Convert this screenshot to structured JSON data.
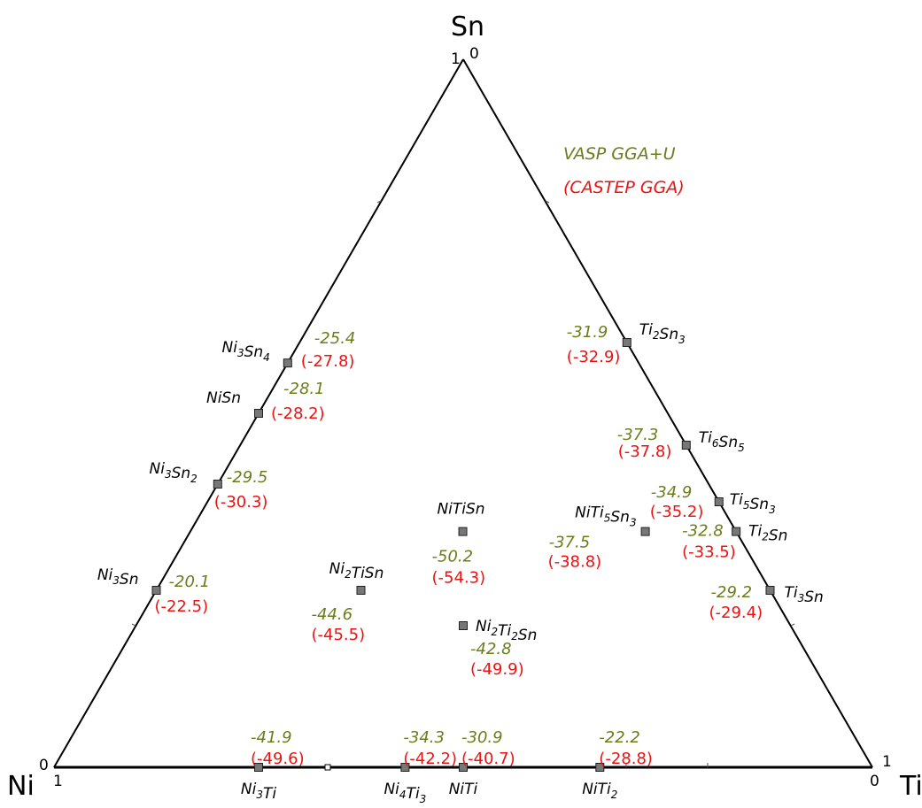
{
  "corners": {
    "top": "Sn",
    "left": "Ni",
    "right": "Ti"
  },
  "ticks": {
    "top_a": "1",
    "top_b": "0",
    "left_a": "0",
    "left_b": "1",
    "right_a": "1",
    "right_b": "0"
  },
  "colors": {
    "vasp": "#6b7d1b",
    "castep": "#ee1111",
    "marker": "#777777",
    "axis": "#000000"
  },
  "legend": {
    "vasp": "VASP GGA+U",
    "castep": "(CASTEP GGA)"
  },
  "phases": [
    {
      "id": "ni3sn4",
      "name": [
        "Ni",
        "3",
        "Sn",
        "4"
      ],
      "ti": 0,
      "sn": 0.571,
      "vasp": "-25.4",
      "castep": "(-27.8)"
    },
    {
      "id": "nisn",
      "name": [
        "NiSn"
      ],
      "ti": 0,
      "sn": 0.5,
      "vasp": "-28.1",
      "castep": "(-28.2)"
    },
    {
      "id": "ni3sn2",
      "name": [
        "Ni",
        "3",
        "Sn",
        "2"
      ],
      "ti": 0,
      "sn": 0.4,
      "vasp": "-29.5",
      "castep": "(-30.3)"
    },
    {
      "id": "ni3sn",
      "name": [
        "Ni",
        "3",
        "Sn"
      ],
      "ti": 0,
      "sn": 0.25,
      "vasp": "-20.1",
      "castep": "(-22.5)"
    },
    {
      "id": "ti2sn3",
      "name": [
        "Ti",
        "2",
        "Sn",
        "3"
      ],
      "ti": 0.4,
      "sn": 0.6,
      "vasp": "-31.9",
      "castep": "(-32.9)"
    },
    {
      "id": "ti6sn5",
      "name": [
        "Ti",
        "6",
        "Sn",
        "5"
      ],
      "ti": 0.545,
      "sn": 0.455,
      "vasp": "-37.3",
      "castep": "(-37.8)"
    },
    {
      "id": "ti5sn3",
      "name": [
        "Ti",
        "5",
        "Sn",
        "3"
      ],
      "ti": 0.625,
      "sn": 0.375,
      "vasp": "-34.9",
      "castep": "(-35.2)"
    },
    {
      "id": "ti2sn",
      "name": [
        "Ti",
        "2",
        "Sn"
      ],
      "ti": 0.667,
      "sn": 0.333,
      "vasp": "-32.8",
      "castep": "(-33.5)"
    },
    {
      "id": "ti3sn",
      "name": [
        "Ti",
        "3",
        "Sn"
      ],
      "ti": 0.75,
      "sn": 0.25,
      "vasp": "-29.2",
      "castep": "(-29.4)"
    },
    {
      "id": "nitisn",
      "name": [
        "NiTiSn"
      ],
      "ti": 0.333,
      "sn": 0.333,
      "vasp": "-50.2",
      "castep": "(-54.3)"
    },
    {
      "id": "ni2tisn",
      "name": [
        "Ni",
        "2",
        "TiSn"
      ],
      "ti": 0.25,
      "sn": 0.25,
      "vasp": "-44.6",
      "castep": "(-45.5)"
    },
    {
      "id": "ni2ti2sn",
      "name": [
        "Ni",
        "2",
        "Ti",
        "2",
        "Sn"
      ],
      "ti": 0.4,
      "sn": 0.2,
      "vasp": "-42.8",
      "castep": "(-49.9)"
    },
    {
      "id": "niti5sn3",
      "name": [
        "NiTi",
        "5",
        "Sn",
        "3"
      ],
      "ti": 0.556,
      "sn": 0.333,
      "vasp": "-37.5",
      "castep": "(-38.8)"
    },
    {
      "id": "ni3ti",
      "name": [
        "Ni",
        "3",
        "Ti"
      ],
      "ti": 0.25,
      "sn": 0,
      "vasp": "-41.9",
      "castep": "(-49.6)"
    },
    {
      "id": "ni4ti3",
      "name": [
        "Ni",
        "4",
        "Ti",
        "3"
      ],
      "ti": 0.429,
      "sn": 0,
      "vasp": "-34.3",
      "castep": "(-42.2)"
    },
    {
      "id": "niti",
      "name": [
        "NiTi"
      ],
      "ti": 0.5,
      "sn": 0,
      "vasp": "-30.9",
      "castep": "(-40.7)"
    },
    {
      "id": "niti2",
      "name": [
        "NiTi",
        "2"
      ],
      "ti": 0.667,
      "sn": 0,
      "vasp": "-22.2",
      "castep": "(-28.8)"
    }
  ]
}
